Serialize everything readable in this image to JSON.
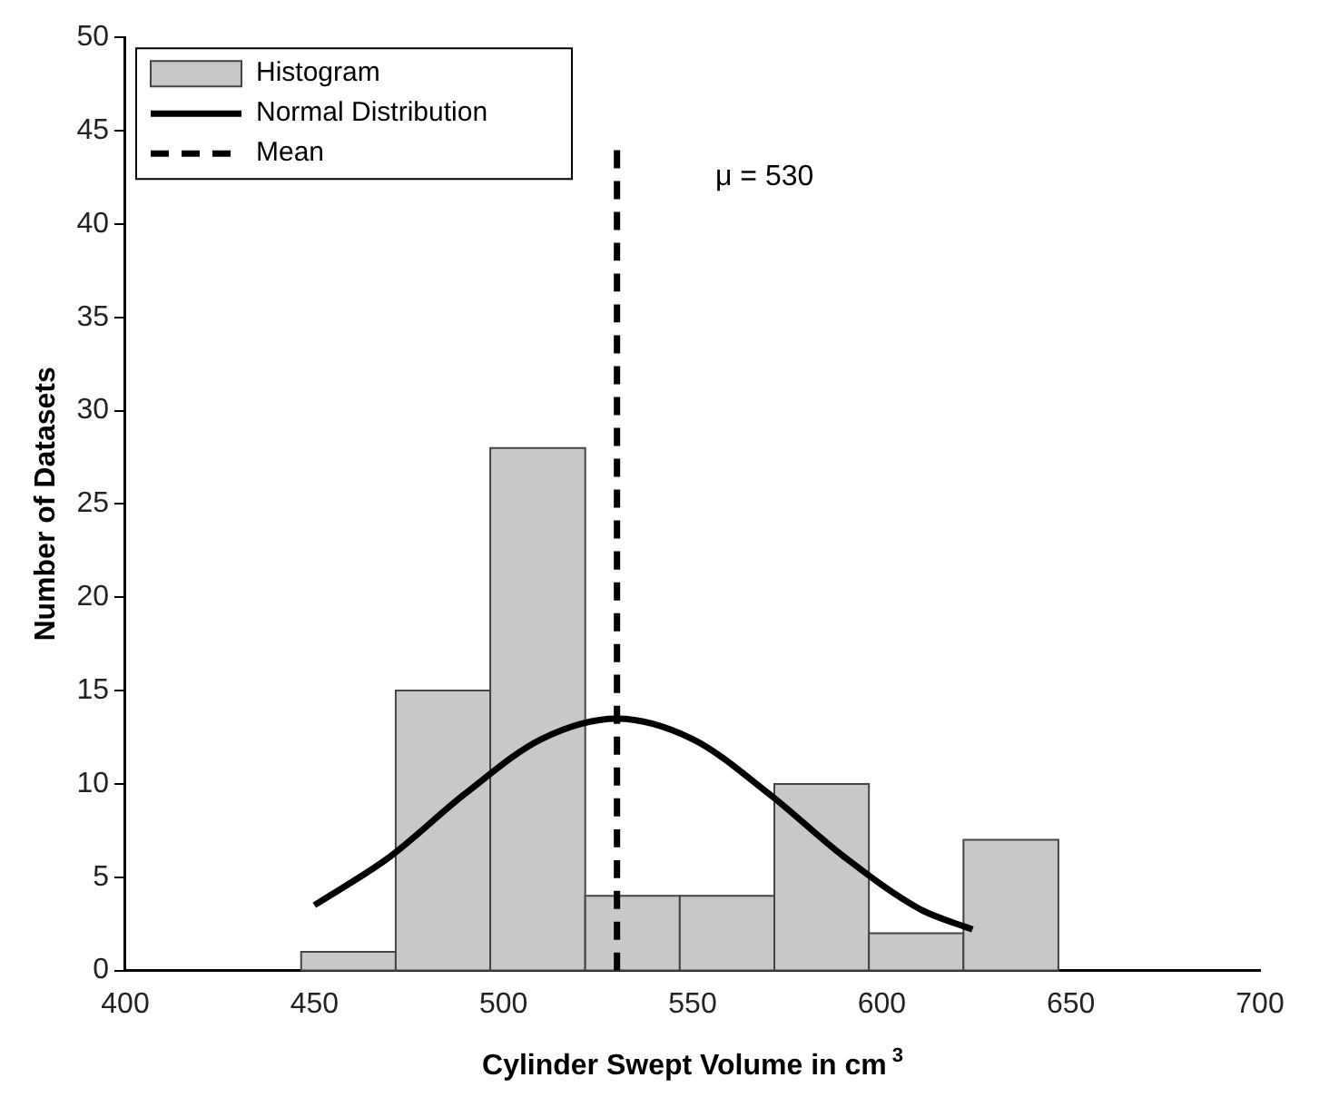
{
  "chart_data": {
    "type": "histogram",
    "xlabel": "Cylinder Swept Volume in cm$^{3}$",
    "ylabel": "Number of Datasets",
    "xlim": [
      400,
      700
    ],
    "xticks": [
      400,
      450,
      500,
      550,
      600,
      650,
      700
    ],
    "ylim": [
      0,
      50
    ],
    "yticks": [
      0,
      5,
      10,
      15,
      20,
      25,
      30,
      35,
      40,
      45,
      50
    ],
    "grid": false,
    "legend": "top left",
    "annotations": [
      "μ = 530"
    ],
    "series": [
      {
        "name": "Histogram",
        "color": "#c8c8c8",
        "bins": [
          446.5,
          471.5,
          496.5,
          521.6,
          546.6,
          571.6,
          596.6,
          621.6,
          646.7
        ],
        "values": [
          1,
          15,
          28,
          4,
          4,
          10,
          2,
          7
        ]
      },
      {
        "type": "line",
        "name": "Normal Distribution",
        "color": "#000000",
        "line_style": "solid",
        "x": [
          450,
          470,
          490,
          510,
          530,
          550,
          570,
          590,
          610,
          624
        ],
        "values": [
          3.5,
          6.1,
          9.5,
          12.4,
          13.5,
          12.4,
          9.5,
          6.1,
          3.3,
          2.2
        ]
      },
      {
        "type": "line",
        "name": "Mean",
        "color": "#000000",
        "line_style": "dashed",
        "x": [
          530,
          530
        ],
        "values": [
          0,
          44
        ]
      }
    ]
  }
}
